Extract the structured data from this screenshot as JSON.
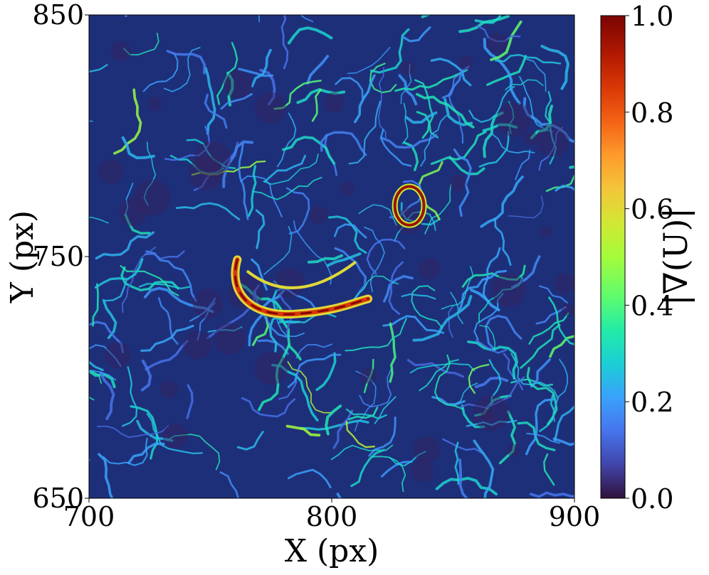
{
  "chart_data": {
    "type": "heatmap",
    "title": "",
    "xlabel": "X (px)",
    "ylabel": "Y (px)",
    "xlim": [
      700,
      900
    ],
    "ylim": [
      650,
      850
    ],
    "x_ticks": [
      "700",
      "800",
      "900"
    ],
    "y_ticks": [
      "650",
      "750",
      "850"
    ],
    "colorbar": {
      "label": "|∇(U)|",
      "range": [
        0.0,
        1.0
      ],
      "ticks": [
        "0.0",
        "0.2",
        "0.4",
        "0.6",
        "0.8",
        "1.0"
      ],
      "colormap": "turbo"
    },
    "grid": false,
    "notable_features": [
      {
        "name": "arc",
        "x_range": [
          760,
          815
        ],
        "y_range": [
          725,
          750
        ],
        "peak_value": 1.0
      },
      {
        "name": "ring",
        "x_range": [
          826,
          838
        ],
        "y_range": [
          763,
          779
        ],
        "peak_value": 0.95
      }
    ]
  },
  "colors": {
    "low": "#30123b",
    "mid": "#3e9bfe",
    "high": "#7a0403"
  }
}
